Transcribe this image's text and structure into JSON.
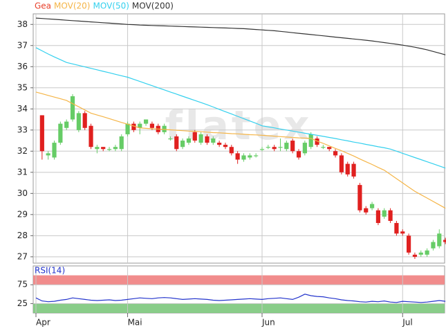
{
  "chart_data": [
    {
      "type": "candlestick",
      "watermark": "flatex",
      "categories": [
        "Apr",
        null,
        null,
        null,
        null,
        null,
        null,
        null,
        null,
        null,
        null,
        null,
        null,
        null,
        null,
        "Mai",
        null,
        null,
        null,
        null,
        null,
        null,
        null,
        null,
        null,
        null,
        null,
        null,
        null,
        null,
        null,
        null,
        null,
        null,
        null,
        null,
        null,
        "Jun",
        null,
        null,
        null,
        null,
        null,
        null,
        null,
        null,
        null,
        null,
        null,
        null,
        null,
        null,
        null,
        null,
        null,
        null,
        null,
        null,
        null,
        null,
        "Jul",
        null,
        null,
        null,
        null,
        null,
        null,
        null
      ],
      "ylim": [
        26.7,
        38.5
      ],
      "yticks": [
        27,
        28,
        29,
        30,
        31,
        32,
        33,
        34,
        35,
        36,
        37,
        38
      ],
      "grid": true,
      "series": [
        {
          "name": "Gea",
          "color": "#e8412c",
          "up_color": "#66cc66",
          "down_color": "#e0201f",
          "open": [
            null,
            33.7,
            31.8,
            31.7,
            32.4,
            33.1,
            33.5,
            33.0,
            33.8,
            33.2,
            32.1,
            32.2,
            32.1,
            32.1,
            32.1,
            32.8,
            33.3,
            33.1,
            33.3,
            33.3,
            33.2,
            32.9,
            32.6,
            32.7,
            32.2,
            32.4,
            32.9,
            32.4,
            32.7,
            32.4,
            32.4,
            32.3,
            32.2,
            31.9,
            31.6,
            31.7,
            31.8,
            32.1,
            32.2,
            32.2,
            32.2,
            32.1,
            32.5,
            32.0,
            31.9,
            32.2,
            32.6,
            32.2,
            32.2,
            32.0,
            31.8,
            31.4,
            31.4,
            30.4,
            29.3,
            29.3,
            29.2,
            28.9,
            29.2,
            28.6,
            28.2,
            28.0,
            27.1,
            27.1,
            27.1,
            27.4,
            27.5,
            27.8
          ],
          "high": [
            null,
            33.7,
            32.0,
            32.5,
            33.4,
            33.5,
            34.7,
            33.9,
            33.9,
            33.3,
            32.3,
            32.2,
            32.2,
            32.3,
            32.8,
            33.4,
            33.4,
            33.4,
            33.5,
            33.4,
            33.3,
            33.3,
            32.7,
            32.8,
            32.6,
            32.7,
            33.0,
            32.9,
            32.8,
            32.7,
            32.5,
            32.4,
            32.3,
            32.0,
            31.9,
            31.9,
            31.9,
            32.2,
            32.3,
            32.3,
            32.6,
            32.5,
            32.6,
            32.1,
            32.5,
            32.9,
            32.7,
            32.3,
            32.2,
            32.1,
            31.9,
            31.5,
            31.5,
            30.5,
            29.4,
            29.6,
            29.3,
            29.3,
            29.3,
            28.7,
            28.3,
            28.1,
            27.2,
            27.3,
            27.4,
            27.8,
            28.3,
            27.9
          ],
          "low": [
            null,
            31.6,
            31.6,
            31.6,
            32.3,
            33.0,
            33.4,
            32.9,
            33.0,
            32.1,
            31.9,
            32.0,
            32.0,
            32.0,
            32.0,
            32.7,
            32.9,
            32.8,
            33.2,
            33.0,
            32.8,
            32.8,
            32.5,
            32.0,
            32.1,
            32.3,
            32.4,
            32.3,
            32.3,
            32.3,
            32.2,
            32.1,
            31.8,
            31.4,
            31.5,
            31.6,
            31.7,
            32.0,
            32.1,
            32.0,
            32.0,
            32.0,
            31.9,
            31.6,
            31.8,
            32.1,
            32.2,
            32.1,
            32.0,
            31.7,
            30.9,
            30.8,
            30.7,
            29.1,
            29.0,
            29.2,
            28.5,
            28.8,
            28.6,
            28.0,
            28.0,
            27.1,
            26.9,
            27.0,
            27.0,
            27.3,
            27.4,
            27.6
          ],
          "close": [
            null,
            32.0,
            31.9,
            32.4,
            33.3,
            33.4,
            34.6,
            33.8,
            33.1,
            32.2,
            32.2,
            32.1,
            32.1,
            32.2,
            32.7,
            33.3,
            33.0,
            33.3,
            33.5,
            33.1,
            32.9,
            33.2,
            32.6,
            32.1,
            32.5,
            32.6,
            32.5,
            32.8,
            32.4,
            32.6,
            32.3,
            32.2,
            31.9,
            31.6,
            31.8,
            31.8,
            31.8,
            32.1,
            32.2,
            32.1,
            32.2,
            32.4,
            32.0,
            31.7,
            32.4,
            32.8,
            32.3,
            32.2,
            32.1,
            31.8,
            31.0,
            30.9,
            30.8,
            29.2,
            29.1,
            29.5,
            28.6,
            29.2,
            28.7,
            28.1,
            28.1,
            27.2,
            27.0,
            27.2,
            27.3,
            27.7,
            28.1,
            27.7
          ]
        },
        {
          "name": "MOV(20)",
          "color": "#f5b547",
          "values": [
            34.8,
            34.72,
            34.64,
            34.56,
            34.48,
            34.4,
            34.25,
            34.1,
            33.95,
            33.8,
            33.71,
            33.63,
            33.54,
            33.45,
            33.36,
            33.28,
            33.19,
            33.1,
            33.08,
            33.06,
            33.05,
            33.03,
            33.01,
            32.99,
            32.97,
            32.95,
            32.94,
            32.92,
            32.9,
            32.88,
            32.87,
            32.85,
            32.83,
            32.82,
            32.8,
            32.78,
            32.77,
            32.75,
            32.73,
            32.71,
            32.69,
            32.67,
            32.65,
            32.63,
            32.62,
            32.6,
            32.48,
            32.37,
            32.25,
            32.13,
            32.02,
            31.9,
            31.77,
            31.63,
            31.5,
            31.37,
            31.23,
            31.1,
            30.9,
            30.7,
            30.5,
            30.3,
            30.1,
            29.94,
            29.78,
            29.62,
            29.46,
            29.3
          ]
        },
        {
          "name": "MOV(50)",
          "color": "#33d0ee",
          "values": [
            36.9,
            36.75,
            36.6,
            36.46,
            36.33,
            36.2,
            36.13,
            36.06,
            35.99,
            35.92,
            35.85,
            35.78,
            35.71,
            35.64,
            35.57,
            35.5,
            35.4,
            35.3,
            35.2,
            35.1,
            35.0,
            34.9,
            34.8,
            34.7,
            34.6,
            34.5,
            34.4,
            34.3,
            34.2,
            34.09,
            33.98,
            33.87,
            33.76,
            33.65,
            33.54,
            33.43,
            33.32,
            33.2,
            33.15,
            33.1,
            33.05,
            33.0,
            32.95,
            32.9,
            32.85,
            32.8,
            32.75,
            32.7,
            32.65,
            32.6,
            32.54,
            32.49,
            32.43,
            32.38,
            32.32,
            32.27,
            32.21,
            32.16,
            32.1,
            32.0,
            31.9,
            31.8,
            31.7,
            31.6,
            31.5,
            31.4,
            31.3,
            31.2
          ]
        },
        {
          "name": "MOV(200)",
          "color": "#333333",
          "values": [
            38.3,
            38.28,
            38.26,
            38.24,
            38.22,
            38.2,
            38.18,
            38.16,
            38.14,
            38.12,
            38.1,
            38.08,
            38.06,
            38.04,
            38.02,
            38.0,
            37.99,
            37.97,
            37.96,
            37.95,
            37.94,
            37.93,
            37.92,
            37.91,
            37.9,
            37.89,
            37.88,
            37.87,
            37.86,
            37.85,
            37.84,
            37.83,
            37.82,
            37.81,
            37.8,
            37.78,
            37.76,
            37.74,
            37.72,
            37.7,
            37.67,
            37.64,
            37.61,
            37.58,
            37.55,
            37.52,
            37.49,
            37.46,
            37.43,
            37.4,
            37.37,
            37.34,
            37.31,
            37.28,
            37.25,
            37.22,
            37.18,
            37.14,
            37.1,
            37.06,
            37.02,
            36.97,
            36.92,
            36.86,
            36.8,
            36.72,
            36.64,
            36.56
          ]
        }
      ]
    },
    {
      "type": "line",
      "ylim": [
        0,
        125
      ],
      "yticks": [
        25,
        75
      ],
      "bands": [
        {
          "from": 75,
          "to": 100,
          "color": "#f08080"
        },
        {
          "from": 0,
          "to": 25,
          "color": "#7cc87c"
        }
      ],
      "series": [
        {
          "name": "RSI(14)",
          "color": "#2233cc",
          "values": [
            40,
            32,
            30,
            31,
            34,
            36,
            40,
            38,
            36,
            34,
            33,
            34,
            35,
            33,
            34,
            36,
            38,
            40,
            39,
            38,
            40,
            41,
            40,
            38,
            36,
            37,
            38,
            37,
            36,
            34,
            33,
            34,
            35,
            36,
            37,
            38,
            37,
            36,
            38,
            39,
            40,
            38,
            36,
            42,
            50,
            46,
            44,
            43,
            40,
            38,
            35,
            33,
            32,
            30,
            29,
            31,
            30,
            32,
            29,
            28,
            31,
            30,
            29,
            28,
            29,
            31,
            33,
            31
          ]
        }
      ]
    }
  ]
}
